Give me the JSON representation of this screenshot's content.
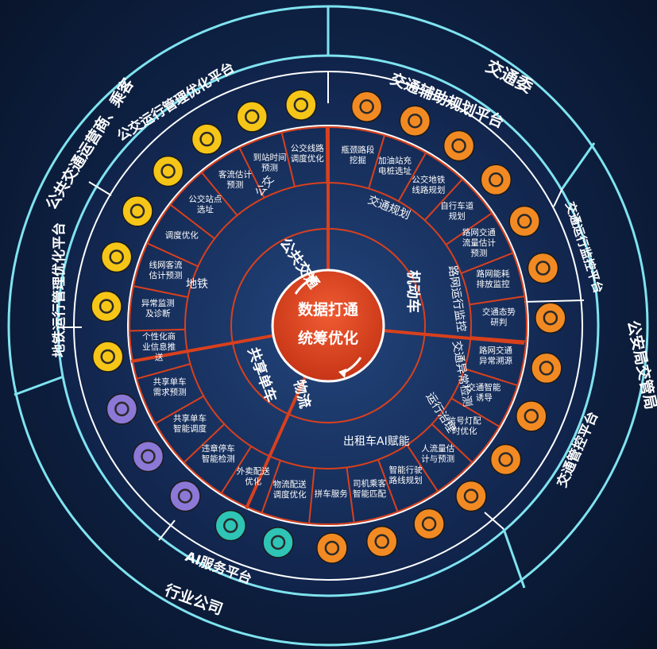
{
  "center": {
    "line1": "数据打通",
    "line2": "统筹优化"
  },
  "outer_ring": {
    "jiaotongwei": "交通委",
    "gongan": "公安局交管局",
    "hangye": "行业公司",
    "gongjiao_yunying": "公共交通运营商、乘客"
  },
  "platforms": {
    "fuzhu": "交通辅助规划平台",
    "yunxing": "交通运行监控平台",
    "guankong": "交通管控平台",
    "ai": "AI服务平台",
    "ditie": "地铁运行管理优化平台",
    "gongjiao": "公交运行管理优化平台"
  },
  "sectors": {
    "gonggong": "公共交通",
    "jidongche": "机动车",
    "wuliu": "物流",
    "gongxiang": "共享单车"
  },
  "subsectors": {
    "gongjiao": "公交",
    "ditie": "地铁",
    "jiaotong_guihua": "交通规划",
    "lu_wang": "路网运行监控",
    "jiaotong_yichang": "交通异常检测",
    "yunxing_zhili": "运行治理",
    "chuzuche": "出租车AI赋能"
  },
  "items": {
    "pingjing": "瓶颈路段挖掘",
    "jiayou": "加油站充电桩选址",
    "gongjiao_ditie": "公交地铁线路规划",
    "zixingche": "自行车道规划",
    "luwang_liuliang": "路网交通流量估计预测",
    "luwang_nenghao": "路网能耗排放监控",
    "taishi": "交通态势研判",
    "yichang_suyuan": "路网交通异常溯源",
    "zhineng_youdao": "交通智能诱导",
    "xinhaodeng": "信号灯配时优化",
    "renliu": "人流量估计与预测",
    "xingche_luxian": "智能行驶路线规划",
    "siji_chengke": "司机乘客智能匹配",
    "pinche": "拼车服务",
    "wuliu_peisong": "物流配送调度优化",
    "waimai": "外卖配送优化",
    "weiting": "违章停车智能检测",
    "danche_diaodu": "共享单车智能调度",
    "danche_xuqiu": "共享单车需求预测",
    "gexinghua": "个性化商业信息推送",
    "yichang_jiance": "异常监测及诊断",
    "xianwang_keliu": "线网客流估计预测",
    "diaodu_youhua": "调度优化",
    "gongjiao_zhandian": "公交站点选址",
    "keliu_gujisuan": "客流估计预测",
    "daozhan": "到站时间预测",
    "gongjiao_xianlu": "公交线路调度优化"
  },
  "colors": {
    "accent_red": "#d9401d",
    "icon_yellow": "#f5c518",
    "icon_orange": "#f28a23",
    "icon_purple": "#8c78d6",
    "icon_teal": "#2ec4b6",
    "ring_cyan": "#7fe3f0"
  }
}
